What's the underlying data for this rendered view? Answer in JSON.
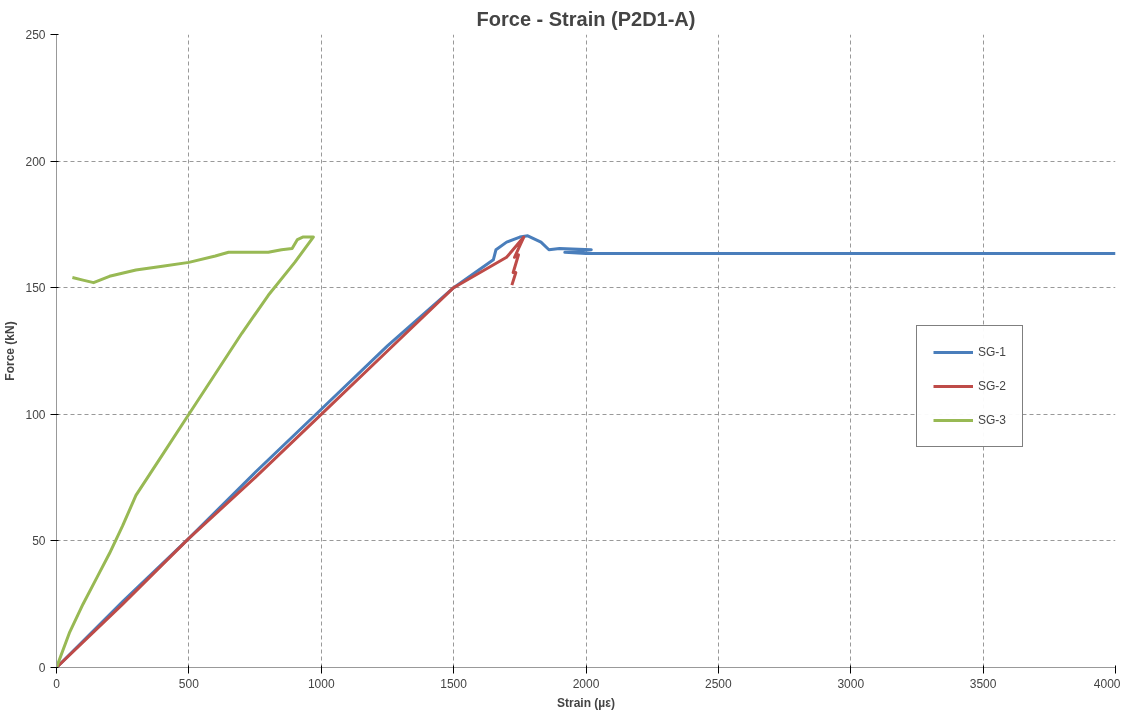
{
  "chart_data": {
    "type": "line",
    "title": "Force - Strain (P2D1-A)",
    "xlabel": "Strain (µε)",
    "ylabel": "Force (kN)",
    "xlim": [
      0,
      4000
    ],
    "xticks": [
      0,
      500,
      1000,
      1500,
      2000,
      2500,
      3000,
      3500,
      4000
    ],
    "ylim": [
      0,
      250
    ],
    "yticks": [
      0,
      50,
      100,
      150,
      200,
      250
    ],
    "grid": true,
    "legend": "right",
    "marker": "none",
    "line_style": "solid",
    "series": [
      {
        "name": "SG-1",
        "color": "#4a7ebb",
        "x": [
          0,
          250,
          500,
          750,
          1000,
          1250,
          1500,
          1650,
          1660,
          1700,
          1750,
          1780,
          1800,
          1830,
          1860,
          1900,
          2020,
          1920,
          2000,
          2500,
          3000,
          4000
        ],
        "values": [
          0,
          26,
          51,
          77,
          102,
          127,
          150,
          161,
          165,
          168,
          170,
          170.5,
          169.5,
          168,
          165,
          165.5,
          165,
          164,
          163.5,
          163.5,
          163.5,
          163.5
        ]
      },
      {
        "name": "SG-2",
        "color": "#be4b48",
        "x": [
          0,
          250,
          500,
          750,
          1000,
          1250,
          1500,
          1700,
          1765,
          1730,
          1745,
          1725,
          1735,
          1720
        ],
        "values": [
          0,
          25,
          51,
          75,
          100,
          125,
          150,
          162,
          170,
          162,
          163,
          156,
          156,
          151
        ]
      },
      {
        "name": "SG-3",
        "color": "#98b954",
        "x": [
          0,
          50,
          100,
          150,
          200,
          250,
          300,
          400,
          500,
          600,
          700,
          800,
          900,
          970,
          930,
          910,
          890,
          850,
          800,
          650,
          600,
          500,
          400,
          300,
          200,
          140,
          100,
          60
        ],
        "values": [
          0,
          14,
          25,
          35,
          45,
          56,
          68,
          84,
          100,
          116,
          132,
          147,
          160,
          170,
          170,
          169,
          165.5,
          165,
          164,
          164,
          162.5,
          160,
          158.5,
          157,
          154.5,
          152,
          153,
          154
        ]
      }
    ]
  }
}
